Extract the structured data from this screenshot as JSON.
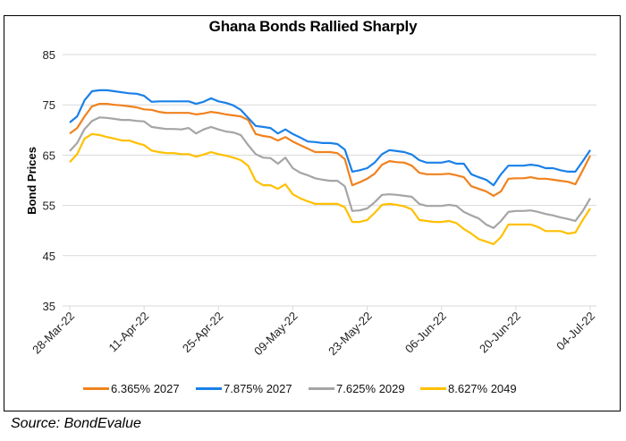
{
  "chart_data": {
    "type": "line",
    "title": "Ghana Bonds Rallied Sharply",
    "xlabel": "",
    "ylabel": "Bond Prices",
    "ylim": [
      35,
      85
    ],
    "yticks": [
      35,
      45,
      55,
      65,
      75,
      85
    ],
    "xtick_labels": [
      "28-Mar-22",
      "11-Apr-22",
      "25-Apr-22",
      "09-May-22",
      "23-May-22",
      "06-Jun-22",
      "20-Jun-22",
      "04-Jul-22"
    ],
    "x_start": "28-Mar-22",
    "x_end": "04-Jul-22",
    "x_frequency": "business days",
    "grid": "horizontal",
    "legend_position": "bottom",
    "series": [
      {
        "name": "6.365% 2027",
        "color": "#F0821E",
        "values": [
          69.3,
          70.4,
          72.7,
          74.7,
          75.2,
          75.2,
          75.0,
          74.9,
          74.7,
          74.5,
          74.1,
          74.0,
          73.6,
          73.4,
          73.4,
          73.4,
          73.4,
          73.1,
          73.3,
          73.6,
          73.4,
          73.1,
          72.9,
          72.7,
          72.0,
          69.2,
          68.8,
          68.6,
          67.9,
          68.6,
          67.7,
          67.0,
          66.3,
          65.6,
          65.6,
          65.6,
          65.4,
          64.2,
          59.0,
          59.6,
          60.3,
          61.3,
          63.1,
          63.8,
          63.6,
          63.5,
          62.9,
          61.5,
          61.2,
          61.2,
          61.2,
          61.3,
          61.0,
          60.6,
          58.8,
          58.3,
          57.8,
          56.9,
          57.8,
          60.3,
          60.4,
          60.4,
          60.6,
          60.3,
          60.3,
          60.1,
          59.9,
          59.7,
          59.2,
          62.0,
          64.9
        ]
      },
      {
        "name": "7.875% 2027",
        "color": "#1A80E8",
        "values": [
          71.5,
          72.7,
          75.9,
          77.7,
          77.9,
          77.9,
          77.7,
          77.5,
          77.3,
          77.2,
          76.8,
          75.6,
          75.7,
          75.7,
          75.7,
          75.7,
          75.7,
          75.2,
          75.6,
          76.3,
          75.7,
          75.4,
          74.9,
          74.0,
          72.4,
          70.8,
          70.6,
          70.4,
          69.3,
          70.1,
          69.2,
          68.5,
          67.7,
          67.6,
          67.4,
          67.4,
          67.2,
          66.1,
          61.7,
          62.0,
          62.4,
          63.5,
          65.2,
          66.0,
          65.8,
          65.6,
          65.1,
          64.0,
          63.5,
          63.5,
          63.5,
          63.8,
          63.3,
          63.3,
          61.2,
          60.6,
          60.1,
          59.0,
          61.2,
          62.9,
          62.9,
          62.9,
          63.1,
          62.9,
          62.4,
          62.4,
          62.0,
          61.7,
          61.7,
          63.8,
          66.0
        ]
      },
      {
        "name": "7.625% 2029",
        "color": "#A5A5A5",
        "values": [
          65.8,
          67.4,
          70.2,
          71.8,
          72.5,
          72.4,
          72.2,
          72.0,
          72.0,
          71.8,
          71.7,
          70.6,
          70.4,
          70.2,
          70.2,
          70.1,
          70.4,
          69.3,
          70.1,
          70.6,
          70.1,
          69.7,
          69.5,
          69.0,
          67.0,
          65.2,
          64.5,
          64.4,
          63.3,
          64.5,
          62.4,
          61.5,
          61.0,
          60.4,
          60.1,
          59.9,
          59.9,
          58.8,
          53.9,
          54.0,
          54.4,
          55.6,
          57.1,
          57.2,
          57.1,
          56.9,
          56.7,
          55.3,
          54.9,
          54.9,
          54.9,
          55.1,
          54.9,
          53.7,
          53.0,
          52.4,
          51.2,
          50.5,
          51.9,
          53.7,
          53.9,
          53.9,
          54.0,
          53.7,
          53.3,
          53.0,
          52.6,
          52.3,
          51.9,
          53.9,
          56.4
        ]
      },
      {
        "name": "8.627% 2049",
        "color": "#FFC000",
        "values": [
          63.6,
          65.2,
          68.3,
          69.2,
          69.0,
          68.6,
          68.3,
          67.9,
          67.9,
          67.4,
          67.0,
          65.9,
          65.6,
          65.4,
          65.4,
          65.2,
          65.2,
          64.7,
          65.1,
          65.6,
          65.2,
          64.9,
          64.5,
          64.0,
          62.9,
          59.9,
          59.0,
          59.0,
          58.3,
          59.2,
          57.2,
          56.4,
          55.8,
          55.3,
          55.3,
          55.3,
          55.3,
          54.6,
          51.7,
          51.7,
          52.1,
          53.5,
          55.1,
          55.3,
          55.1,
          54.8,
          54.2,
          52.1,
          51.9,
          51.7,
          51.7,
          51.9,
          51.5,
          50.3,
          49.4,
          48.3,
          47.8,
          47.3,
          48.7,
          51.2,
          51.2,
          51.2,
          51.2,
          50.7,
          49.9,
          49.9,
          49.9,
          49.4,
          49.6,
          52.1,
          54.4
        ]
      }
    ]
  },
  "source": "Source: BondEvalue"
}
